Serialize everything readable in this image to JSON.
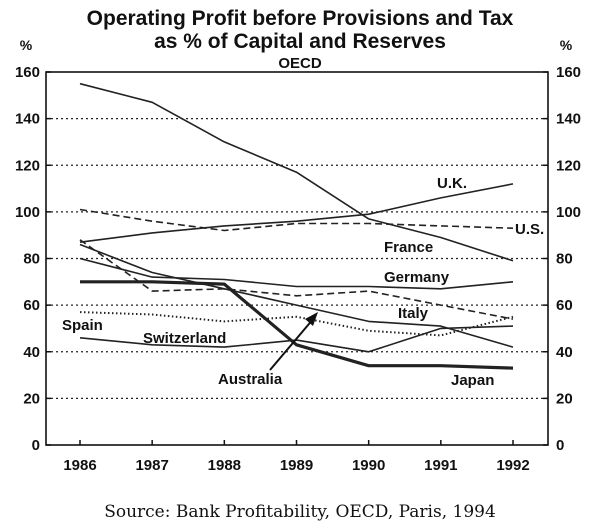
{
  "chart_data": {
    "type": "line",
    "title_line1": "Operating Profit before Provisions and Tax",
    "title_line2": "as % of Capital and Reserves",
    "subtitle": "OECD",
    "y_unit_left": "%",
    "y_unit_right": "%",
    "ylim": [
      0,
      160
    ],
    "y_ticks": [
      "0",
      "20",
      "40",
      "60",
      "80",
      "100",
      "120",
      "140",
      "160"
    ],
    "x": [
      1986,
      1987,
      1988,
      1989,
      1990,
      1991,
      1992
    ],
    "x_tick_labels": [
      "1986",
      "1987",
      "1988",
      "1989",
      "1990",
      "1991",
      "1992"
    ],
    "grid": true,
    "series": [
      {
        "name": "France",
        "label": "France",
        "values": [
          155,
          147,
          130,
          117,
          97,
          89,
          79
        ],
        "style": "solid"
      },
      {
        "name": "U.K.",
        "label": "U.K.",
        "values": [
          87,
          91,
          94,
          96,
          99,
          106,
          112
        ],
        "style": "solid"
      },
      {
        "name": "U.S.",
        "label": "U.S.",
        "values": [
          101,
          96,
          92,
          95,
          95,
          94,
          93
        ],
        "style": "dashed"
      },
      {
        "name": "Germany",
        "label": "Germany",
        "values": [
          80,
          72,
          71,
          68,
          68,
          67,
          70
        ],
        "style": "solid"
      },
      {
        "name": "Italy",
        "label": "Italy",
        "values": [
          88,
          66,
          67,
          64,
          66,
          60,
          54
        ],
        "style": "dashed"
      },
      {
        "name": "Spain",
        "label": "Spain",
        "values": [
          86,
          74,
          67,
          60,
          53,
          51,
          42
        ],
        "style": "solid"
      },
      {
        "name": "Switzerland",
        "label": "Switzerland",
        "values": [
          57,
          56,
          53,
          55,
          49,
          47,
          55
        ],
        "style": "dotted"
      },
      {
        "name": "Australia",
        "label": "Australia",
        "values": [
          46,
          43,
          42,
          45,
          40,
          50,
          51
        ],
        "style": "solid"
      },
      {
        "name": "Japan",
        "label": "Japan",
        "values": [
          70,
          70,
          69,
          43,
          34,
          34,
          33
        ],
        "style": "bold"
      }
    ]
  },
  "source": "Source: Bank Profitability, OECD, Paris, 1994"
}
